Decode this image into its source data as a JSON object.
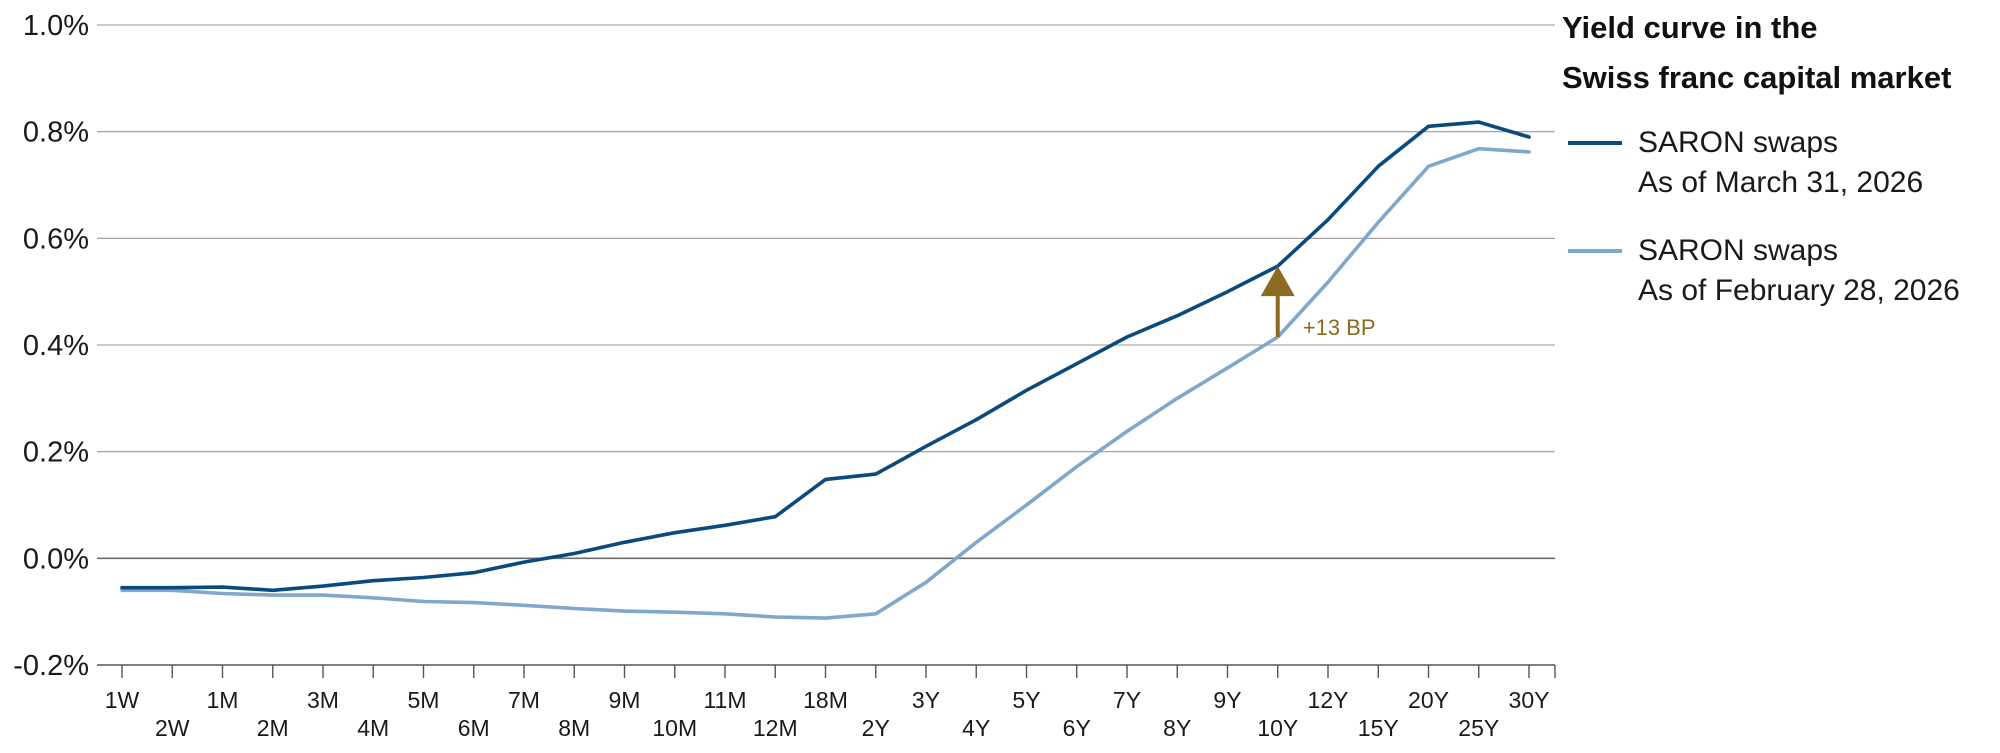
{
  "chart_data": {
    "type": "line",
    "title_lines": [
      "Yield curve in the",
      "Swiss franc capital market"
    ],
    "xlabel": "",
    "ylabel": "",
    "ylim": [
      -0.2,
      1.0
    ],
    "yticks": [
      -0.2,
      0.0,
      0.2,
      0.4,
      0.6,
      0.8,
      1.0
    ],
    "ytick_labels": [
      "-0.2%",
      "0.0%",
      "0.2%",
      "0.4%",
      "0.6%",
      "0.8%",
      "1.0%"
    ],
    "categories": [
      "1W",
      "2W",
      "1M",
      "2M",
      "3M",
      "4M",
      "5M",
      "6M",
      "7M",
      "8M",
      "9M",
      "10M",
      "11M",
      "12M",
      "18M",
      "2Y",
      "3Y",
      "4Y",
      "5Y",
      "6Y",
      "7Y",
      "8Y",
      "9Y",
      "10Y",
      "12Y",
      "15Y",
      "20Y",
      "25Y",
      "30Y"
    ],
    "grid": true,
    "legend_position": "right",
    "series": [
      {
        "name_lines": [
          "SARON swaps",
          "As of March 31, 2026"
        ],
        "color": "#0b4a7d",
        "values": [
          -0.055,
          -0.055,
          -0.054,
          -0.06,
          -0.052,
          -0.042,
          -0.036,
          -0.027,
          -0.007,
          0.009,
          0.03,
          0.048,
          0.062,
          0.078,
          0.148,
          0.158,
          0.21,
          0.26,
          0.315,
          0.365,
          0.415,
          0.455,
          0.5,
          0.548,
          0.635,
          0.735,
          0.81,
          0.818,
          0.79
        ]
      },
      {
        "name_lines": [
          "SARON swaps",
          "As of February 28, 2026"
        ],
        "color": "#7fa8cc",
        "values": [
          -0.06,
          -0.06,
          -0.066,
          -0.069,
          -0.069,
          -0.074,
          -0.081,
          -0.083,
          -0.088,
          -0.094,
          -0.099,
          -0.101,
          -0.104,
          -0.11,
          -0.112,
          -0.104,
          -0.045,
          0.03,
          0.1,
          0.172,
          0.238,
          0.3,
          0.357,
          0.415,
          0.518,
          0.63,
          0.735,
          0.768,
          0.762
        ]
      }
    ],
    "annotation": {
      "label": "+13 BP",
      "category": "10Y",
      "from": 0.415,
      "to": 0.548,
      "color": "#8b6b1f"
    }
  }
}
